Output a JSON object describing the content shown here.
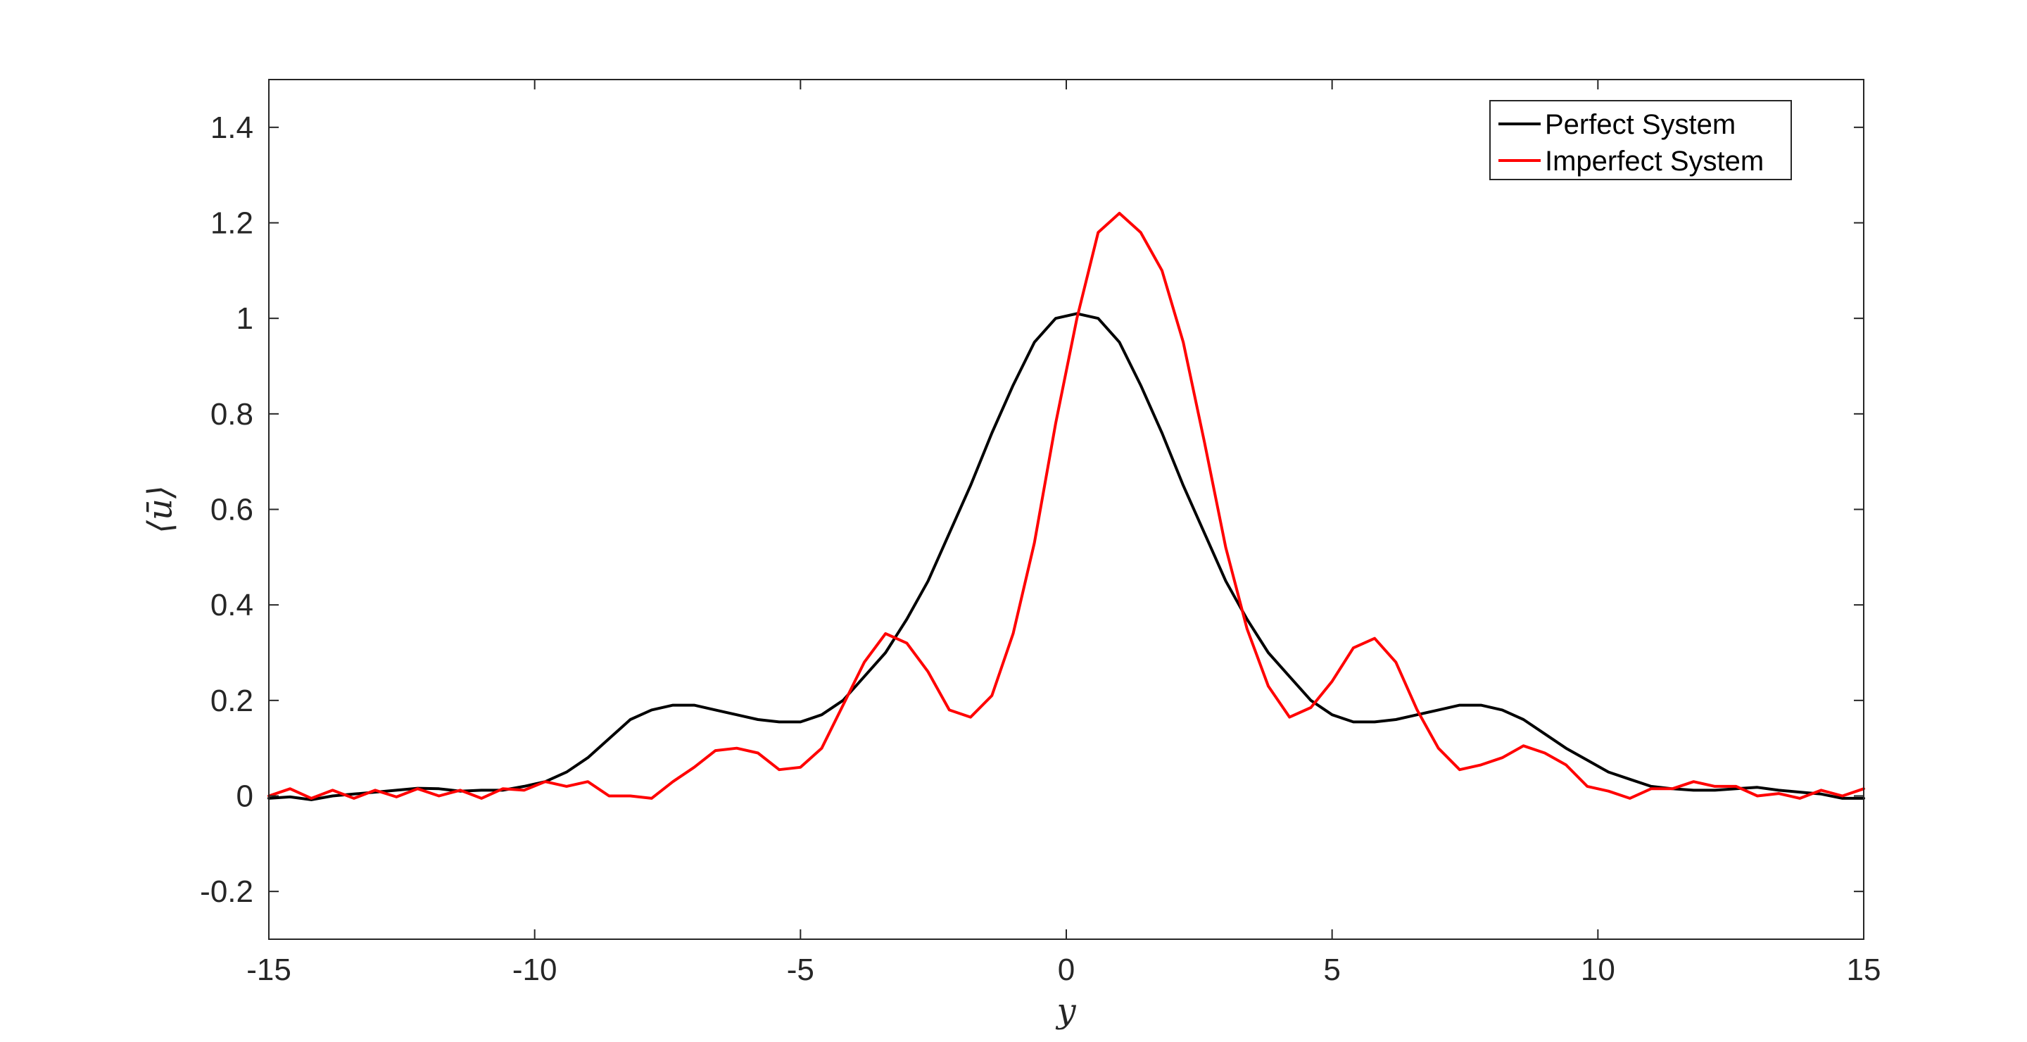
{
  "chart_data": {
    "type": "line",
    "title": "",
    "xlabel": "y",
    "ylabel": "⟨ū⟩",
    "xlim": [
      -15,
      15
    ],
    "ylim": [
      -0.3,
      1.5
    ],
    "xticks": [
      -15,
      -10,
      -5,
      0,
      5,
      10,
      15
    ],
    "yticks": [
      -0.2,
      0,
      0.2,
      0.4,
      0.6,
      0.8,
      1,
      1.2,
      1.4
    ],
    "xtick_labels": [
      "-15",
      "-10",
      "-5",
      "0",
      "5",
      "10",
      "15"
    ],
    "ytick_labels": [
      "-0.2",
      "0",
      "0.2",
      "0.4",
      "0.6",
      "0.8",
      "1",
      "1.2",
      "1.4"
    ],
    "grid": false,
    "legend_position": "top-right",
    "series": [
      {
        "name": "Perfect System",
        "color": "#000000",
        "x": [
          -15,
          -14.6,
          -14.2,
          -13.8,
          -13.4,
          -13,
          -12.6,
          -12.2,
          -11.8,
          -11.4,
          -11,
          -10.6,
          -10.2,
          -9.8,
          -9.4,
          -9,
          -8.6,
          -8.2,
          -7.8,
          -7.4,
          -7,
          -6.6,
          -6.2,
          -5.8,
          -5.4,
          -5,
          -4.6,
          -4.2,
          -3.8,
          -3.4,
          -3,
          -2.6,
          -2.2,
          -1.8,
          -1.4,
          -1,
          -0.6,
          -0.2,
          0.2,
          0.6,
          1,
          1.4,
          1.8,
          2.2,
          2.6,
          3,
          3.4,
          3.8,
          4.2,
          4.6,
          5,
          5.4,
          5.8,
          6.2,
          6.6,
          7,
          7.4,
          7.8,
          8.2,
          8.6,
          9,
          9.4,
          9.8,
          10.2,
          10.6,
          11,
          11.4,
          11.8,
          12.2,
          12.6,
          13,
          13.4,
          13.8,
          14.2,
          14.6,
          15
        ],
        "y": [
          -0.005,
          -0.002,
          -0.008,
          0.0,
          0.004,
          0.008,
          0.012,
          0.016,
          0.015,
          0.01,
          0.012,
          0.012,
          0.02,
          0.03,
          0.05,
          0.08,
          0.12,
          0.16,
          0.18,
          0.19,
          0.19,
          0.18,
          0.17,
          0.16,
          0.155,
          0.155,
          0.17,
          0.2,
          0.25,
          0.3,
          0.37,
          0.45,
          0.55,
          0.65,
          0.76,
          0.86,
          0.95,
          1.0,
          1.01,
          1.0,
          0.95,
          0.86,
          0.76,
          0.65,
          0.55,
          0.45,
          0.37,
          0.3,
          0.25,
          0.2,
          0.17,
          0.155,
          0.155,
          0.16,
          0.17,
          0.18,
          0.19,
          0.19,
          0.18,
          0.16,
          0.13,
          0.1,
          0.075,
          0.05,
          0.035,
          0.02,
          0.015,
          0.012,
          0.012,
          0.015,
          0.018,
          0.012,
          0.008,
          0.004,
          -0.005,
          -0.005
        ]
      },
      {
        "name": "Imperfect System",
        "color": "#ff0000",
        "x": [
          -15,
          -14.6,
          -14.2,
          -13.8,
          -13.4,
          -13,
          -12.6,
          -12.2,
          -11.8,
          -11.4,
          -11,
          -10.6,
          -10.2,
          -9.8,
          -9.4,
          -9,
          -8.6,
          -8.2,
          -7.8,
          -7.4,
          -7,
          -6.6,
          -6.2,
          -5.8,
          -5.4,
          -5,
          -4.6,
          -4.2,
          -3.8,
          -3.4,
          -3,
          -2.6,
          -2.2,
          -1.8,
          -1.4,
          -1,
          -0.6,
          -0.2,
          0.2,
          0.6,
          1,
          1.4,
          1.8,
          2.2,
          2.6,
          3,
          3.4,
          3.8,
          4.2,
          4.6,
          5,
          5.4,
          5.8,
          6.2,
          6.6,
          7,
          7.4,
          7.8,
          8.2,
          8.6,
          9,
          9.4,
          9.8,
          10.2,
          10.6,
          11,
          11.4,
          11.8,
          12.2,
          12.6,
          13,
          13.4,
          13.8,
          14.2,
          14.6,
          15
        ],
        "y": [
          0.0,
          0.015,
          -0.005,
          0.012,
          -0.005,
          0.012,
          -0.002,
          0.015,
          0.0,
          0.012,
          -0.005,
          0.015,
          0.012,
          0.03,
          0.02,
          0.03,
          0.0,
          0.0,
          -0.005,
          0.03,
          0.06,
          0.095,
          0.1,
          0.09,
          0.055,
          0.06,
          0.1,
          0.19,
          0.28,
          0.34,
          0.32,
          0.26,
          0.18,
          0.165,
          0.21,
          0.34,
          0.53,
          0.78,
          1.0,
          1.18,
          1.22,
          1.18,
          1.1,
          0.95,
          0.74,
          0.52,
          0.35,
          0.23,
          0.165,
          0.185,
          0.24,
          0.31,
          0.33,
          0.28,
          0.18,
          0.1,
          0.055,
          0.065,
          0.08,
          0.105,
          0.09,
          0.065,
          0.02,
          0.01,
          -0.005,
          0.015,
          0.015,
          0.03,
          0.02,
          0.02,
          0.0,
          0.005,
          -0.005,
          0.012,
          0.0,
          0.015
        ]
      }
    ]
  }
}
